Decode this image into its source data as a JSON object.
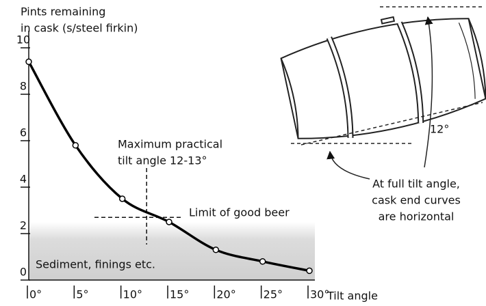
{
  "chart_data": {
    "type": "line",
    "y_label_lines": [
      "Pints remaining",
      "in cask (s/steel firkin)"
    ],
    "x_label": "Tilt angle",
    "x": [
      0,
      5,
      10,
      15,
      20,
      25,
      30
    ],
    "values": [
      9.4,
      5.8,
      3.5,
      2.5,
      1.3,
      0.8,
      0.4
    ],
    "color": "#000000",
    "xlim": [
      0,
      30
    ],
    "ylim": [
      0,
      10
    ],
    "xticks": [
      {
        "value": 0,
        "label": "0°"
      },
      {
        "value": 5,
        "label": "5°"
      },
      {
        "value": 10,
        "label": "10°"
      },
      {
        "value": 15,
        "label": "15°"
      },
      {
        "value": 20,
        "label": "20°"
      },
      {
        "value": 25,
        "label": "25°"
      },
      {
        "value": 30,
        "label": "30°"
      }
    ],
    "yticks": [
      0,
      2,
      4,
      6,
      8,
      10
    ],
    "sediment_level": 2.5,
    "sediment_label": "Sediment, finings etc.",
    "limit_value": 2.7,
    "limit_label": "Limit of good beer",
    "max_tilt": 12.6,
    "max_tilt_label_lines": [
      "Maximum practical",
      "tilt angle 12-13°"
    ],
    "cask_angle_label": "12°",
    "cask_note_lines": [
      "At full tilt angle,",
      "cask end curves",
      "are horizontal"
    ]
  }
}
